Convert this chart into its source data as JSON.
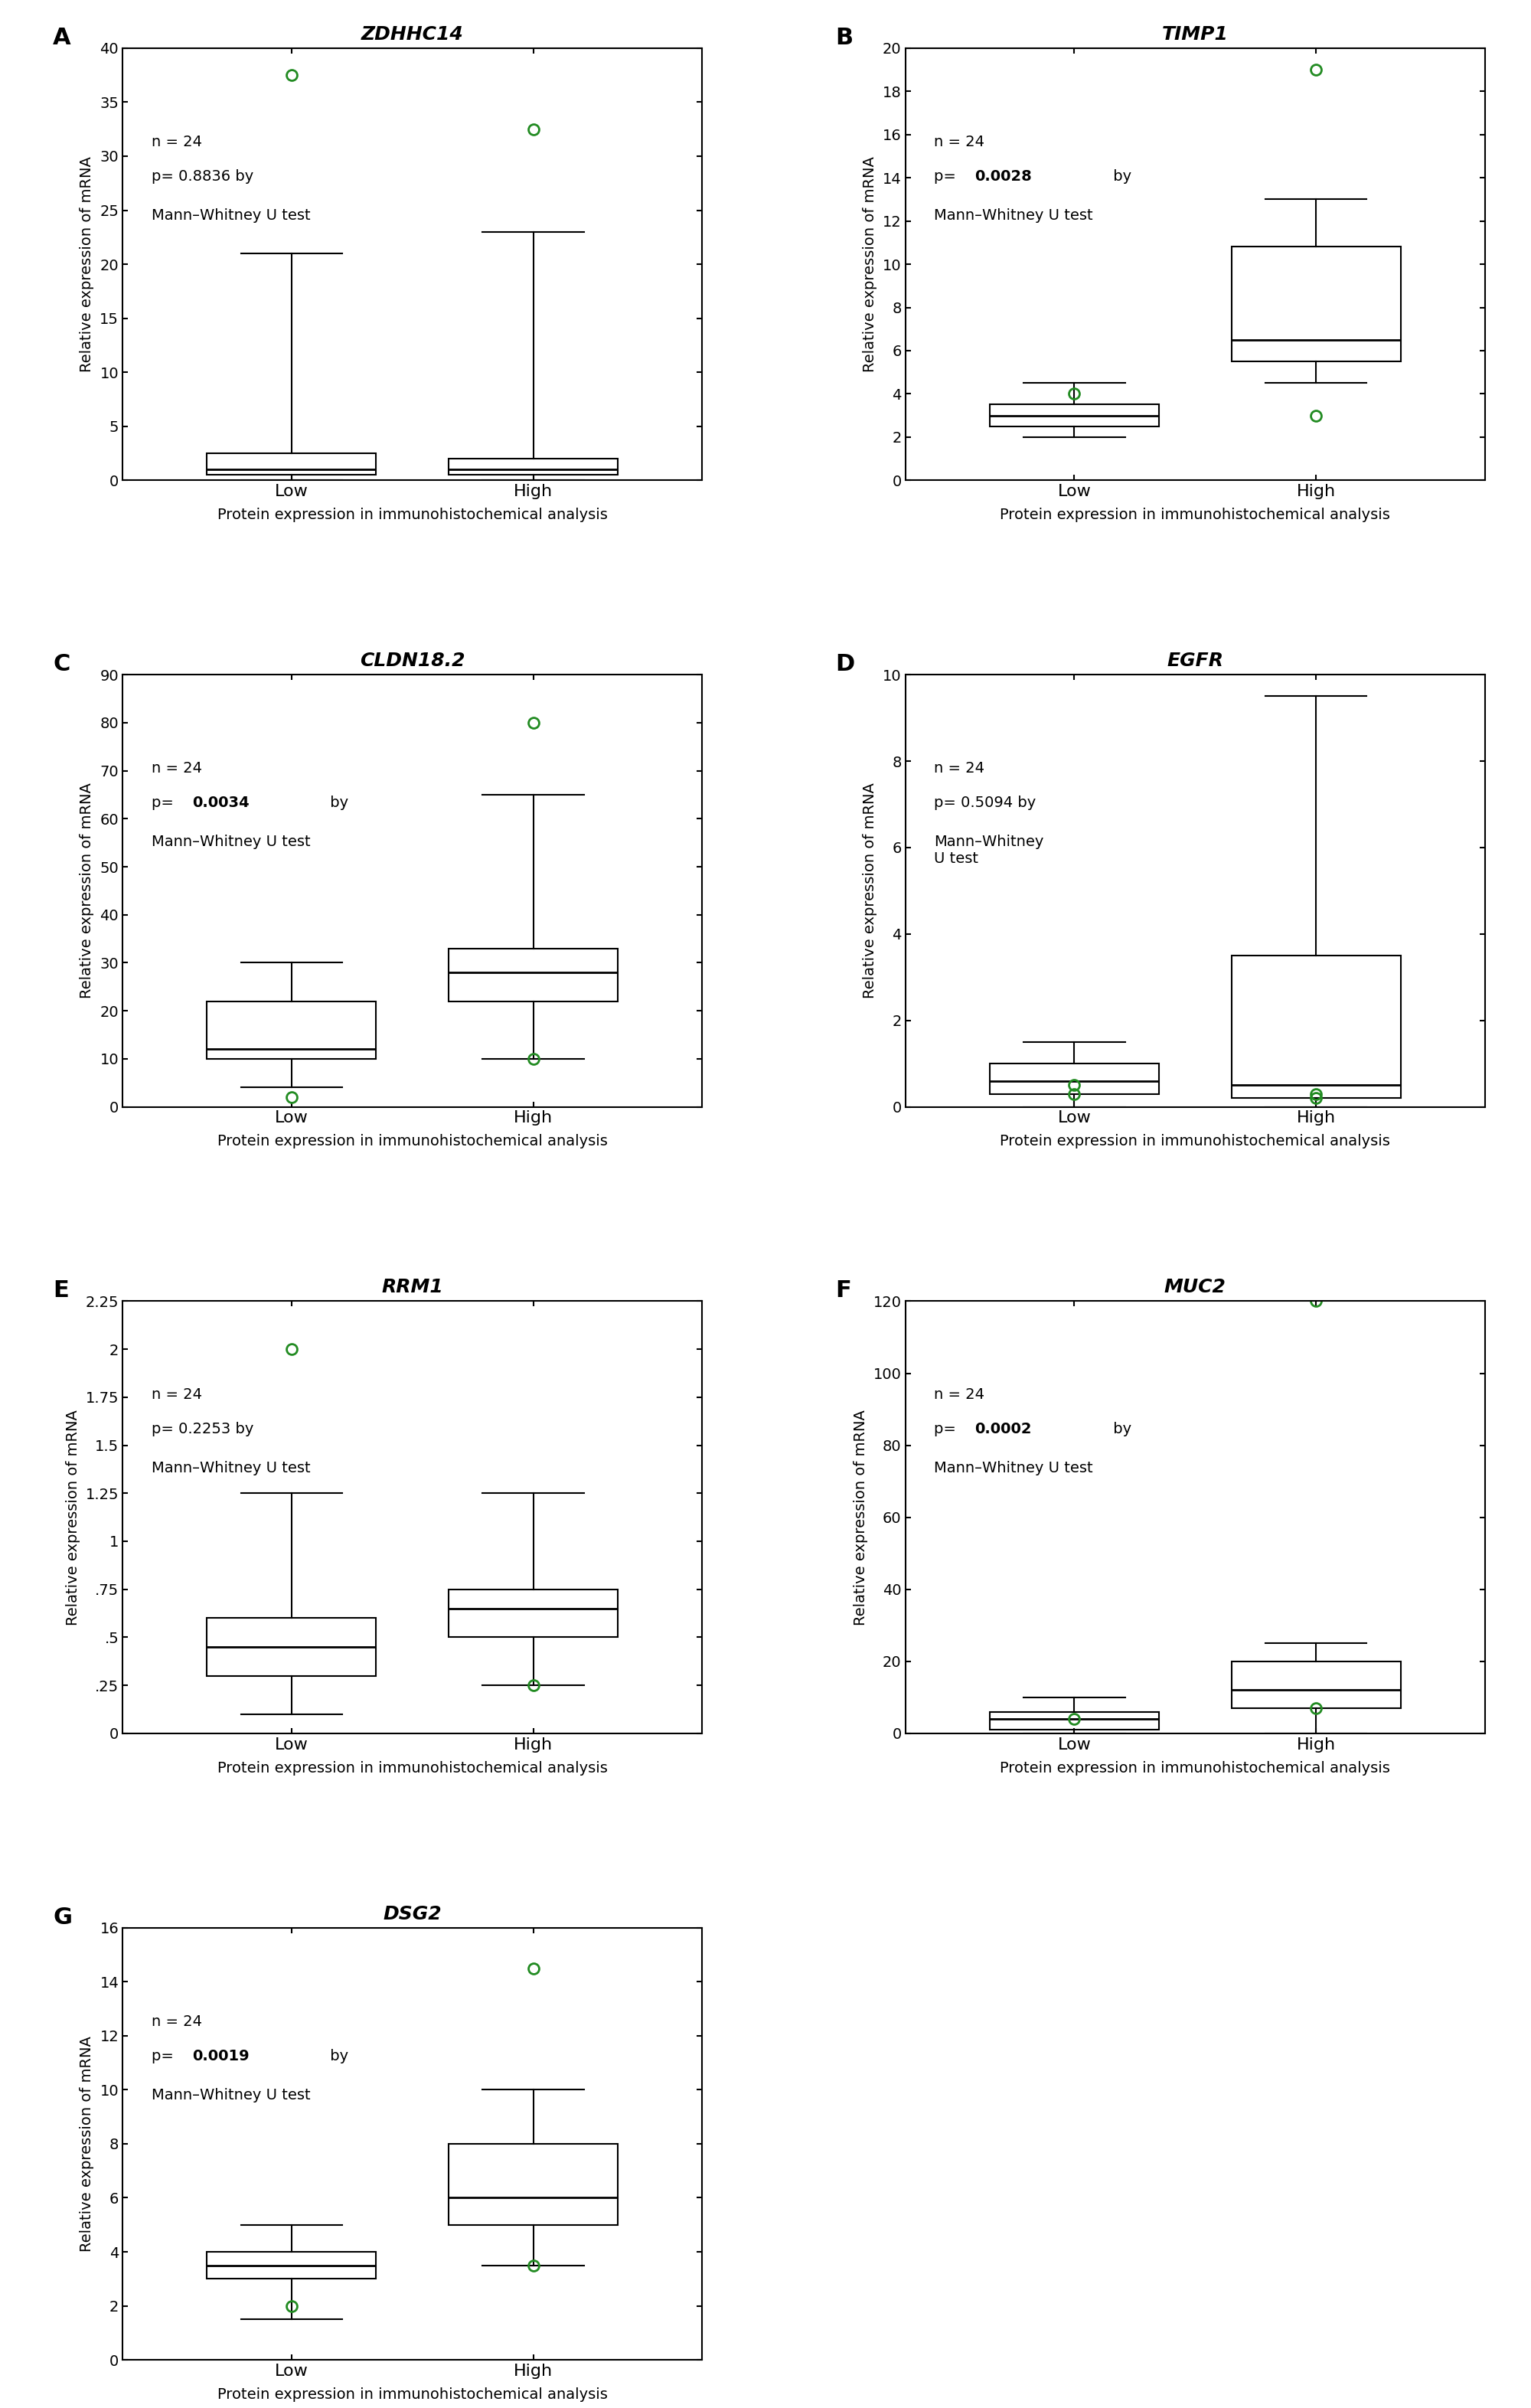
{
  "panels": [
    {
      "label": "A",
      "title": "ZDHHC14",
      "n": "n = 24",
      "pval": "p= 0.8836 by",
      "test": "Mann–Whitney U test",
      "pval_bold": false,
      "ylim": [
        0,
        40
      ],
      "yticks": [
        0,
        5,
        10,
        15,
        20,
        25,
        30,
        35,
        40
      ],
      "low": {
        "q1": 0.5,
        "median": 1.0,
        "q3": 2.5,
        "whisker_low": 0.0,
        "whisker_high": 21.0,
        "outliers": [
          37.5
        ]
      },
      "high": {
        "q1": 0.5,
        "median": 1.0,
        "q3": 2.0,
        "whisker_low": 0.0,
        "whisker_high": 23.0,
        "outliers": [
          32.5
        ]
      }
    },
    {
      "label": "B",
      "title": "TIMP1",
      "n": "n = 24",
      "pval": "p= 0.0028 by",
      "test": "Mann–Whitney U test",
      "pval_bold": true,
      "ylim": [
        0,
        20
      ],
      "yticks": [
        0,
        2,
        4,
        6,
        8,
        10,
        12,
        14,
        16,
        18,
        20
      ],
      "low": {
        "q1": 2.5,
        "median": 3.0,
        "q3": 3.5,
        "whisker_low": 2.0,
        "whisker_high": 4.5,
        "outliers": [
          4.0
        ]
      },
      "high": {
        "q1": 5.5,
        "median": 6.5,
        "q3": 10.8,
        "whisker_low": 4.5,
        "whisker_high": 13.0,
        "outliers": [
          19.0,
          3.0
        ]
      }
    },
    {
      "label": "C",
      "title": "CLDN18.2",
      "n": "n = 24",
      "pval": "p= 0.0034 by",
      "test": "Mann–Whitney U test",
      "pval_bold": true,
      "ylim": [
        0,
        90
      ],
      "yticks": [
        0,
        10,
        20,
        30,
        40,
        50,
        60,
        70,
        80,
        90
      ],
      "low": {
        "q1": 10.0,
        "median": 12.0,
        "q3": 22.0,
        "whisker_low": 4.0,
        "whisker_high": 30.0,
        "outliers": [
          2.0
        ]
      },
      "high": {
        "q1": 22.0,
        "median": 28.0,
        "q3": 33.0,
        "whisker_low": 10.0,
        "whisker_high": 65.0,
        "outliers": [
          80.0,
          10.0
        ]
      }
    },
    {
      "label": "D",
      "title": "EGFR",
      "n": "n = 24",
      "pval": "p= 0.5094 by",
      "test": "Mann–Whitney\nU test",
      "pval_bold": false,
      "ylim": [
        0,
        10
      ],
      "yticks": [
        0,
        2,
        4,
        6,
        8,
        10
      ],
      "low": {
        "q1": 0.3,
        "median": 0.6,
        "q3": 1.0,
        "whisker_low": 0.0,
        "whisker_high": 1.5,
        "outliers": [
          0.3,
          0.5
        ]
      },
      "high": {
        "q1": 0.2,
        "median": 0.5,
        "q3": 3.5,
        "whisker_low": 0.0,
        "whisker_high": 9.5,
        "outliers": [
          0.2,
          0.3
        ]
      }
    },
    {
      "label": "E",
      "title": "RRM1",
      "n": "n = 24",
      "pval": "p= 0.2253 by",
      "test": "Mann–Whitney U test",
      "pval_bold": false,
      "ylim": [
        0,
        2.25
      ],
      "yticks": [
        0,
        0.25,
        0.5,
        0.75,
        1.0,
        1.25,
        1.5,
        1.75,
        2.0,
        2.25
      ],
      "ytick_labels": [
        "0",
        ".25",
        ".5",
        ".75",
        "1",
        "1.25",
        "1.5",
        "1.75",
        "2",
        "2.25"
      ],
      "low": {
        "q1": 0.3,
        "median": 0.45,
        "q3": 0.6,
        "whisker_low": 0.1,
        "whisker_high": 1.25,
        "outliers": [
          2.0
        ]
      },
      "high": {
        "q1": 0.5,
        "median": 0.65,
        "q3": 0.75,
        "whisker_low": 0.25,
        "whisker_high": 1.25,
        "outliers": [
          0.25
        ]
      }
    },
    {
      "label": "F",
      "title": "MUC2",
      "n": "n = 24",
      "pval": "p= 0.0002 by",
      "test": "Mann–Whitney U test",
      "pval_bold": true,
      "ylim": [
        0,
        120
      ],
      "yticks": [
        0,
        20,
        40,
        60,
        80,
        100,
        120
      ],
      "low": {
        "q1": 1.0,
        "median": 4.0,
        "q3": 6.0,
        "whisker_low": 0.0,
        "whisker_high": 10.0,
        "outliers": [
          4.0
        ]
      },
      "high": {
        "q1": 7.0,
        "median": 12.0,
        "q3": 20.0,
        "whisker_low": 0.0,
        "whisker_high": 25.0,
        "outliers": [
          120.0,
          7.0
        ]
      }
    },
    {
      "label": "G",
      "title": "DSG2",
      "n": "n = 24",
      "pval": "p= 0.0019 by",
      "test": "Mann–Whitney U test",
      "pval_bold": true,
      "ylim": [
        0,
        16
      ],
      "yticks": [
        0,
        2,
        4,
        6,
        8,
        10,
        12,
        14,
        16
      ],
      "low": {
        "q1": 3.0,
        "median": 3.5,
        "q3": 4.0,
        "whisker_low": 1.5,
        "whisker_high": 5.0,
        "outliers": [
          2.0
        ]
      },
      "high": {
        "q1": 5.0,
        "median": 6.0,
        "q3": 8.0,
        "whisker_low": 3.5,
        "whisker_high": 10.0,
        "outliers": [
          14.5,
          3.5
        ]
      }
    }
  ],
  "outlier_color": "#228B22",
  "box_color": "black",
  "background_color": "white",
  "ylabel": "Relative expression of mRNA",
  "xlabel": "Protein expression in immunohistochemical analysis",
  "categories": [
    "Low",
    "High"
  ],
  "title_fontsize": 18,
  "label_fontsize": 16,
  "tick_fontsize": 14,
  "annotation_fontsize": 14
}
